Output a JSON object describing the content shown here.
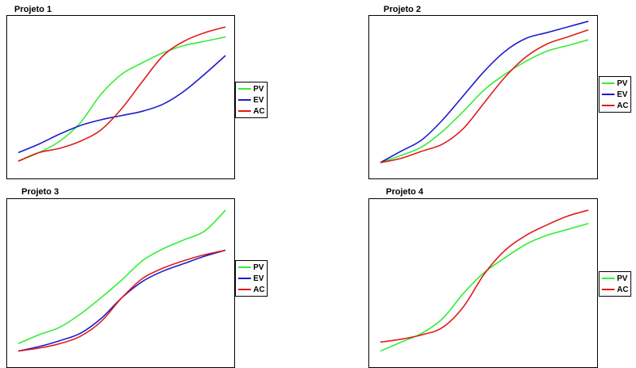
{
  "colors": {
    "PV": "#33ee33",
    "EV": "#1a1acc",
    "AC": "#e01a1a"
  },
  "chart_data": [
    {
      "type": "line",
      "title": "Projeto 1",
      "xlabel": "",
      "ylabel": "",
      "xlim": [
        0,
        1
      ],
      "ylim": [
        0,
        1
      ],
      "grid": false,
      "legend": "right",
      "series": [
        {
          "name": "PV",
          "x": [
            0,
            0.1,
            0.2,
            0.3,
            0.4,
            0.5,
            0.6,
            0.7,
            0.8,
            0.9,
            1
          ],
          "y": [
            0.06,
            0.12,
            0.2,
            0.33,
            0.53,
            0.67,
            0.75,
            0.82,
            0.87,
            0.9,
            0.93
          ]
        },
        {
          "name": "EV",
          "x": [
            0,
            0.1,
            0.2,
            0.3,
            0.4,
            0.5,
            0.6,
            0.7,
            0.8,
            0.9,
            1
          ],
          "y": [
            0.12,
            0.18,
            0.25,
            0.31,
            0.35,
            0.38,
            0.41,
            0.46,
            0.55,
            0.67,
            0.8
          ]
        },
        {
          "name": "AC",
          "x": [
            0,
            0.1,
            0.2,
            0.3,
            0.4,
            0.5,
            0.6,
            0.7,
            0.8,
            0.9,
            1
          ],
          "y": [
            0.06,
            0.12,
            0.15,
            0.2,
            0.28,
            0.43,
            0.62,
            0.8,
            0.9,
            0.96,
            1.0
          ]
        }
      ]
    },
    {
      "type": "line",
      "title": "Projeto 2",
      "xlabel": "",
      "ylabel": "",
      "xlim": [
        0,
        1
      ],
      "ylim": [
        0,
        1
      ],
      "grid": false,
      "legend": "right",
      "series": [
        {
          "name": "PV",
          "x": [
            0,
            0.1,
            0.2,
            0.3,
            0.4,
            0.5,
            0.6,
            0.7,
            0.8,
            0.9,
            1
          ],
          "y": [
            0.05,
            0.1,
            0.16,
            0.27,
            0.41,
            0.56,
            0.67,
            0.76,
            0.83,
            0.87,
            0.91
          ]
        },
        {
          "name": "EV",
          "x": [
            0,
            0.1,
            0.2,
            0.3,
            0.4,
            0.5,
            0.6,
            0.7,
            0.8,
            0.9,
            1
          ],
          "y": [
            0.05,
            0.13,
            0.21,
            0.35,
            0.52,
            0.69,
            0.83,
            0.92,
            0.96,
            1.0,
            1.04
          ]
        },
        {
          "name": "AC",
          "x": [
            0,
            0.1,
            0.2,
            0.3,
            0.4,
            0.5,
            0.6,
            0.7,
            0.8,
            0.9,
            1
          ],
          "y": [
            0.05,
            0.08,
            0.13,
            0.18,
            0.29,
            0.47,
            0.65,
            0.79,
            0.88,
            0.93,
            0.98
          ]
        }
      ]
    },
    {
      "type": "line",
      "title": "Projeto 3",
      "xlabel": "",
      "ylabel": "",
      "xlim": [
        0,
        1
      ],
      "ylim": [
        0,
        1
      ],
      "grid": false,
      "legend": "right",
      "series": [
        {
          "name": "PV",
          "x": [
            0,
            0.1,
            0.2,
            0.3,
            0.4,
            0.5,
            0.6,
            0.7,
            0.8,
            0.9,
            1
          ],
          "y": [
            0.1,
            0.16,
            0.21,
            0.3,
            0.41,
            0.53,
            0.66,
            0.74,
            0.8,
            0.86,
            1.0
          ]
        },
        {
          "name": "EV",
          "x": [
            0,
            0.1,
            0.2,
            0.3,
            0.4,
            0.5,
            0.6,
            0.7,
            0.8,
            0.9,
            1
          ],
          "y": [
            0.05,
            0.08,
            0.12,
            0.17,
            0.27,
            0.41,
            0.52,
            0.59,
            0.64,
            0.69,
            0.73
          ]
        },
        {
          "name": "AC",
          "x": [
            0,
            0.1,
            0.2,
            0.3,
            0.4,
            0.5,
            0.6,
            0.7,
            0.8,
            0.9,
            1
          ],
          "y": [
            0.05,
            0.07,
            0.1,
            0.15,
            0.25,
            0.41,
            0.54,
            0.61,
            0.66,
            0.7,
            0.73
          ]
        }
      ]
    },
    {
      "type": "line",
      "title": "Projeto 4",
      "xlabel": "",
      "ylabel": "",
      "xlim": [
        0,
        1
      ],
      "ylim": [
        0,
        1
      ],
      "grid": false,
      "legend": "right",
      "series": [
        {
          "name": "PV",
          "x": [
            0,
            0.1,
            0.2,
            0.3,
            0.4,
            0.5,
            0.6,
            0.7,
            0.8,
            0.9,
            1
          ],
          "y": [
            0.05,
            0.11,
            0.17,
            0.27,
            0.44,
            0.58,
            0.68,
            0.77,
            0.83,
            0.87,
            0.91
          ]
        },
        {
          "name": "AC",
          "x": [
            0,
            0.1,
            0.2,
            0.3,
            0.4,
            0.5,
            0.6,
            0.7,
            0.8,
            0.9,
            1
          ],
          "y": [
            0.11,
            0.13,
            0.16,
            0.21,
            0.35,
            0.57,
            0.73,
            0.83,
            0.9,
            0.96,
            1.0
          ]
        }
      ]
    }
  ]
}
